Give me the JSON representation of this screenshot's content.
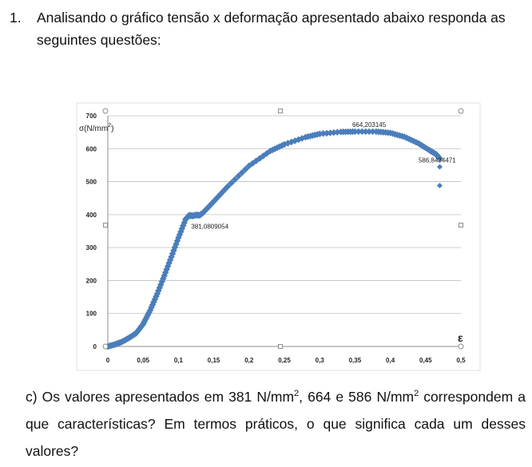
{
  "question": {
    "number": "1.",
    "text": "Analisando o gráfico tensão x deformação apresentado abaixo responda as seguintes questões:"
  },
  "chart_data": {
    "type": "scatter",
    "ylabel_prefix": "σ(N/mm",
    "ylabel_exp": "2",
    "ylabel_suffix": ")",
    "xlabel": "ε",
    "xlim": [
      0,
      0.5
    ],
    "ylim": [
      0,
      700
    ],
    "x_ticks": [
      "0",
      "0,05",
      "0,1",
      "0,15",
      "0,2",
      "0,25",
      "0,3",
      "0,35",
      "0,4",
      "0,45",
      "0,5"
    ],
    "y_ticks": [
      "0",
      "100",
      "200",
      "300",
      "400",
      "500",
      "600",
      "700"
    ],
    "grid": "horizontal",
    "color": "#4a7ebb",
    "series": [
      {
        "points": [
          [
            0.0,
            0
          ],
          [
            0.01,
            6
          ],
          [
            0.02,
            14
          ],
          [
            0.03,
            26
          ],
          [
            0.04,
            40
          ],
          [
            0.05,
            68
          ],
          [
            0.06,
            110
          ],
          [
            0.07,
            160
          ],
          [
            0.08,
            215
          ],
          [
            0.09,
            272
          ],
          [
            0.1,
            330
          ],
          [
            0.11,
            385
          ],
          [
            0.115,
            398
          ],
          [
            0.12,
            396
          ],
          [
            0.125,
            399
          ],
          [
            0.13,
            398
          ],
          [
            0.135,
            406
          ],
          [
            0.15,
            440
          ],
          [
            0.17,
            486
          ],
          [
            0.2,
            548
          ],
          [
            0.23,
            593
          ],
          [
            0.25,
            613
          ],
          [
            0.28,
            635
          ],
          [
            0.3,
            645
          ],
          [
            0.33,
            651
          ],
          [
            0.35,
            652
          ],
          [
            0.38,
            652
          ],
          [
            0.4,
            648
          ],
          [
            0.42,
            636
          ],
          [
            0.44,
            616
          ],
          [
            0.455,
            596
          ],
          [
            0.465,
            583
          ],
          [
            0.47,
            570
          ]
        ]
      }
    ],
    "outliers": [
      [
        0.47,
        545
      ],
      [
        0.47,
        488
      ]
    ],
    "annotations": [
      {
        "text": "664,203145",
        "x": 0.37,
        "y": 652,
        "anchor": "middle",
        "dy": -6
      },
      {
        "text": "586,8434471",
        "x": 0.44,
        "y": 583,
        "anchor": "start",
        "dy": 10
      },
      {
        "text": "381,0809054",
        "x": 0.118,
        "y": 381,
        "anchor": "start",
        "dy": 10
      }
    ]
  },
  "sub_question": {
    "prefix": "c) Os valores apresentados em 381 N/mm",
    "exp1": "2",
    "middle": ", 664 e 586 N/mm",
    "exp2": "2",
    "suffix": " correspondem a que características? Em termos práticos, o que significa cada um desses valores?"
  }
}
